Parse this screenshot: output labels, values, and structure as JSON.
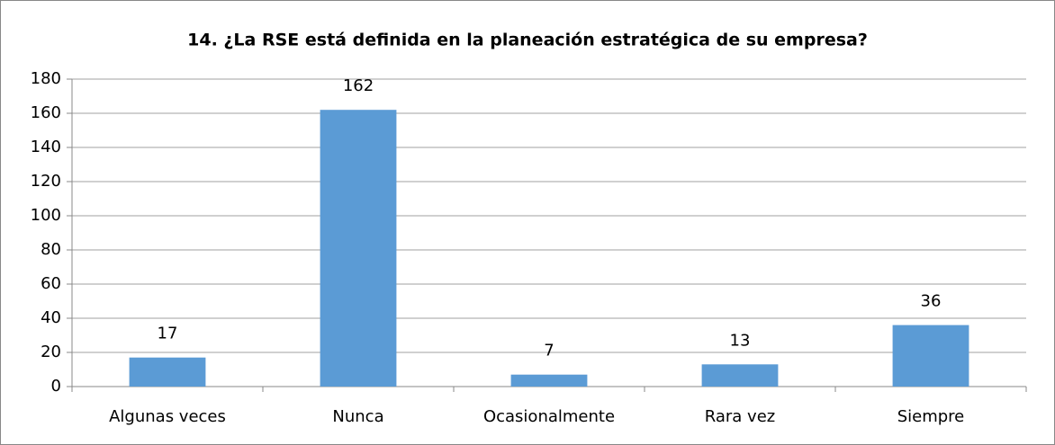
{
  "chart_data": {
    "type": "bar",
    "title": "14. ¿La RSE está definida en la planeación estratégica de su empresa?",
    "categories": [
      "Algunas veces",
      "Nunca",
      "Ocasionalmente",
      "Rara vez",
      "Siempre"
    ],
    "values": [
      17,
      162,
      7,
      13,
      36
    ],
    "color": "#5b9bd5",
    "ylim": [
      0,
      180
    ],
    "yticks": [
      0,
      20,
      40,
      60,
      80,
      100,
      120,
      140,
      160,
      180
    ],
    "grid": true
  }
}
